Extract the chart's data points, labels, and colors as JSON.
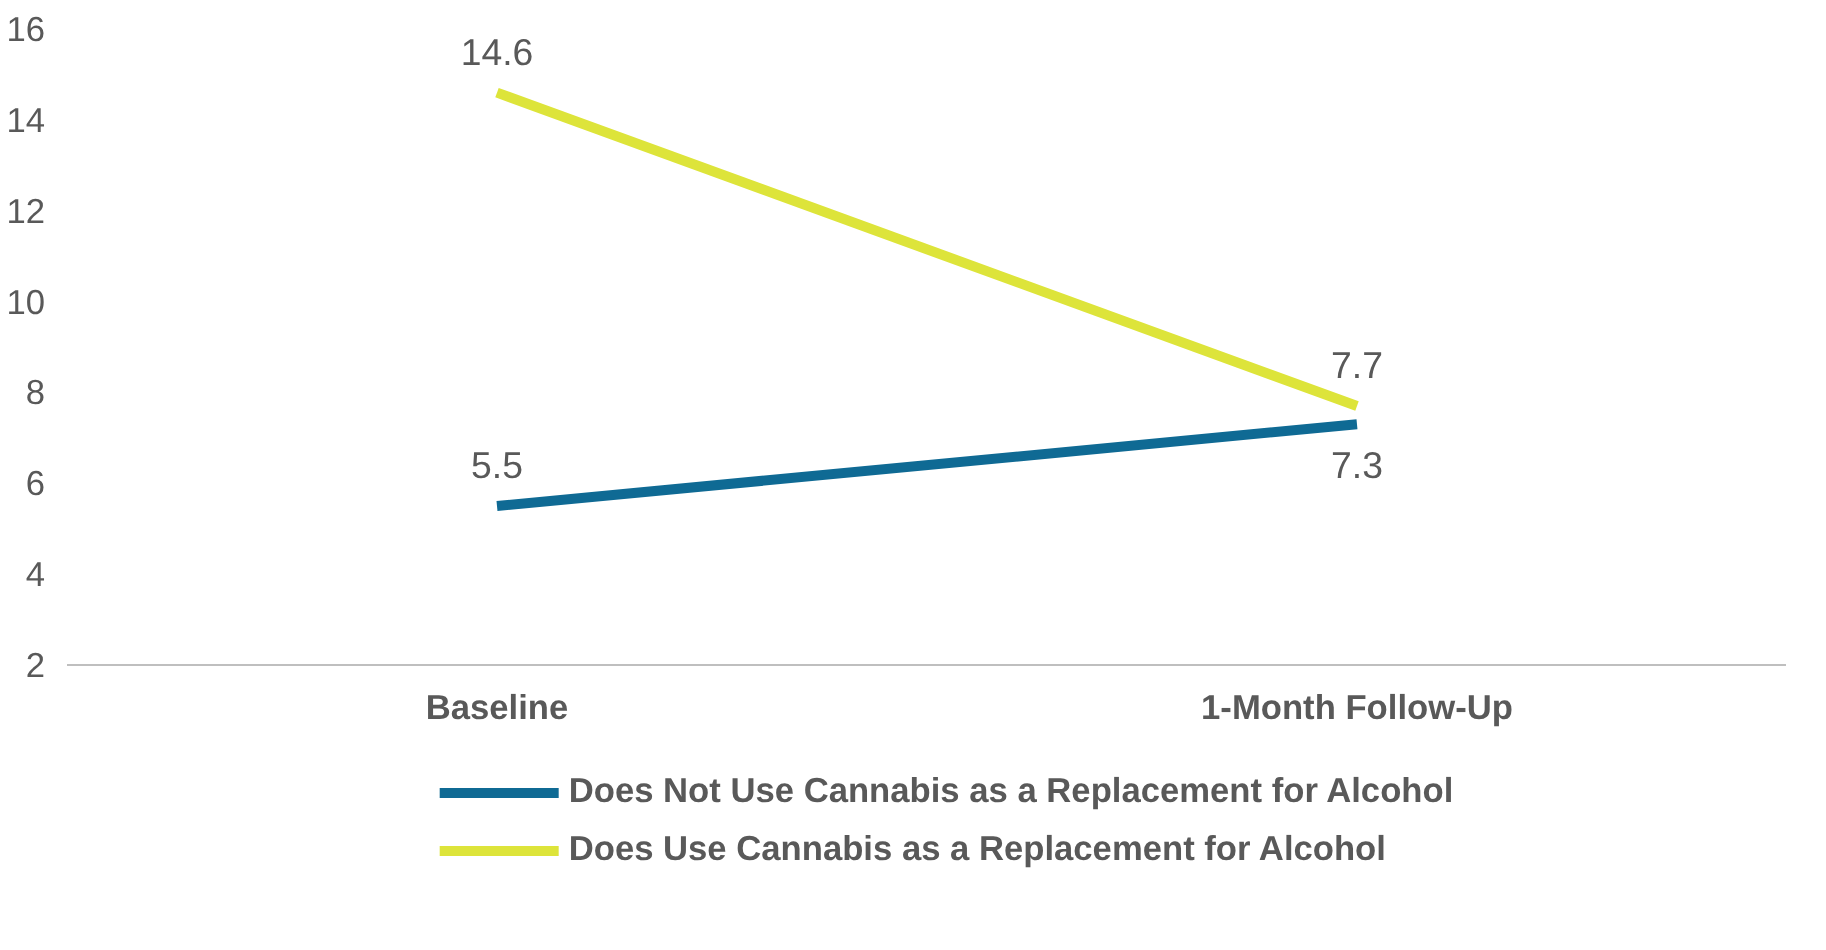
{
  "chart_data": {
    "type": "line",
    "categories": [
      "Baseline",
      "1-Month Follow-Up"
    ],
    "series": [
      {
        "name": "Does Not Use Cannabis as a Replacement for Alcohol",
        "color": "#0f6a94",
        "values": [
          5.5,
          7.3
        ]
      },
      {
        "name": "Does Use Cannabis as a Replacement for Alcohol",
        "color": "#dde43a",
        "values": [
          14.6,
          7.7
        ]
      }
    ],
    "ylim": [
      2,
      16
    ],
    "yticks": [
      2,
      4,
      6,
      8,
      10,
      12,
      14,
      16
    ],
    "grid": false,
    "legend": "bottom",
    "data_labels": true,
    "marker": "none",
    "line_style": "solid"
  }
}
